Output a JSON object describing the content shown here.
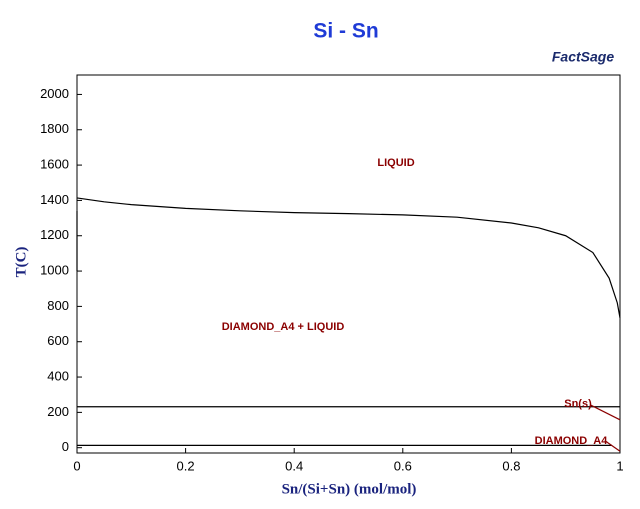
{
  "chart_data": {
    "type": "line",
    "title": "Si - Sn",
    "logo": "FactSage",
    "x_label": "Sn/(Si+Sn) (mol/mol)",
    "y_label": "T(C)",
    "xlim": [
      0,
      1
    ],
    "ylim": [
      -30,
      2110
    ],
    "xticks": [
      0,
      0.2,
      0.4,
      0.6,
      0.8,
      1
    ],
    "yticks": [
      0,
      200,
      400,
      600,
      800,
      1000,
      1200,
      1400,
      1600,
      1800,
      2000
    ],
    "grid": false,
    "annotations": [
      "LIQUID",
      "DIAMOND_A4 + LIQUID",
      "Sn(s)",
      "DIAMOND_A4"
    ],
    "series": [
      {
        "color": "#000000",
        "x": [
          0,
          0.05,
          0.1,
          0.2,
          0.3,
          0.4,
          0.5,
          0.6,
          0.7,
          0.8,
          0.85,
          0.9,
          0.95,
          0.98,
          0.995,
          1
        ],
        "values": [
          1414,
          1392,
          1376,
          1355,
          1341,
          1331,
          1325,
          1318,
          1305,
          1272,
          1245,
          1200,
          1105,
          960,
          820,
          735
        ]
      },
      {
        "color": "#000000",
        "x": [
          0,
          0
        ],
        "values": [
          1000,
          1340
        ]
      },
      {
        "color": "#000000",
        "x": [
          0,
          1
        ],
        "values": [
          232,
          232
        ]
      },
      {
        "color": "#000000",
        "x": [
          0,
          0.985
        ],
        "values": [
          13,
          13
        ]
      },
      {
        "color": "#8b0000",
        "x": [
          0.945,
          1
        ],
        "values": [
          243,
          158
        ]
      },
      {
        "color": "#8b0000",
        "x": [
          0.972,
          1
        ],
        "values": [
          40,
          -20
        ]
      }
    ]
  }
}
